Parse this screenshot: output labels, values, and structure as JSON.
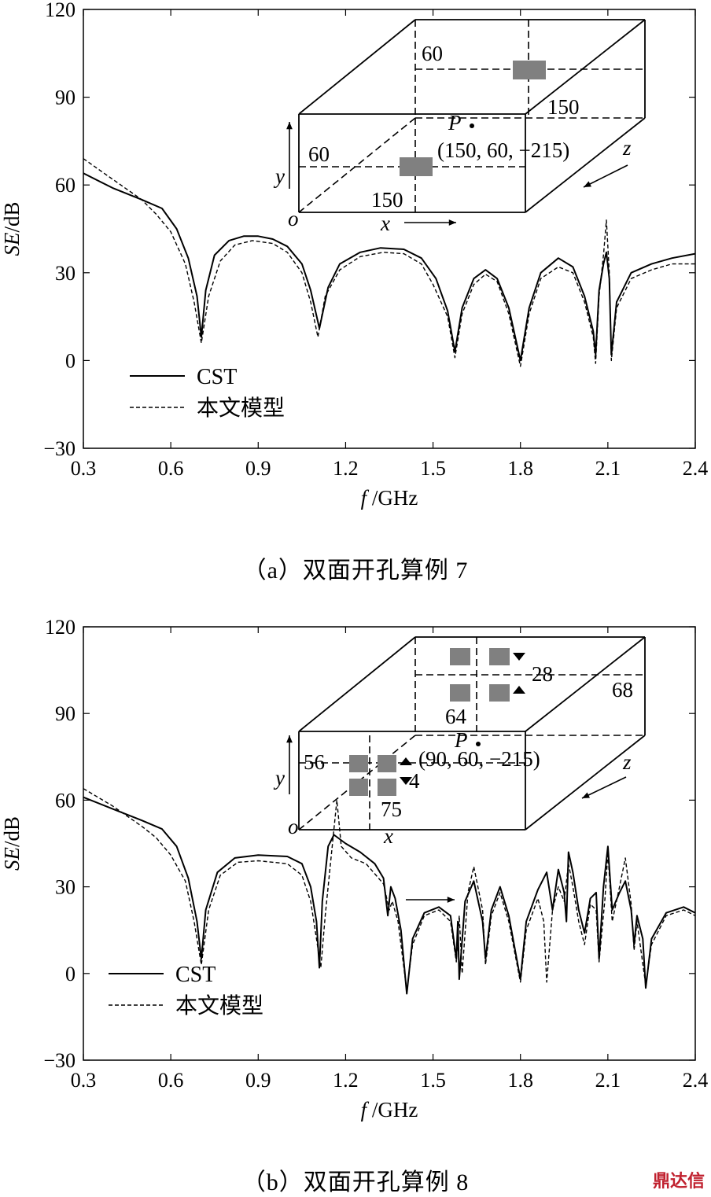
{
  "chart_data": [
    {
      "type": "line",
      "panel_id": "a",
      "caption": "（a）双面开孔算例 7",
      "xlabel": "f/GHz",
      "ylabel": "SE/dB",
      "xlim": [
        0.3,
        2.4
      ],
      "ylim": [
        -30,
        120
      ],
      "xticks": [
        "0.3",
        "0.6",
        "0.9",
        "1.2",
        "1.5",
        "1.8",
        "2.1",
        "2.4"
      ],
      "yticks": [
        "-30",
        "0",
        "30",
        "60",
        "90",
        "120"
      ],
      "legend": [
        "CST",
        "本文模型"
      ],
      "series": [
        {
          "name": "CST",
          "style": "solid",
          "points": [
            [
              0.3,
              64
            ],
            [
              0.4,
              59
            ],
            [
              0.5,
              55
            ],
            [
              0.57,
              52
            ],
            [
              0.62,
              45
            ],
            [
              0.66,
              35
            ],
            [
              0.69,
              22
            ],
            [
              0.705,
              8
            ],
            [
              0.72,
              24
            ],
            [
              0.75,
              36
            ],
            [
              0.8,
              41
            ],
            [
              0.85,
              42.5
            ],
            [
              0.9,
              42.5
            ],
            [
              0.95,
              41.5
            ],
            [
              1.0,
              39
            ],
            [
              1.05,
              33
            ],
            [
              1.08,
              24
            ],
            [
              1.11,
              11
            ],
            [
              1.14,
              25
            ],
            [
              1.18,
              33
            ],
            [
              1.25,
              37
            ],
            [
              1.32,
              38.5
            ],
            [
              1.4,
              38
            ],
            [
              1.46,
              35
            ],
            [
              1.51,
              28
            ],
            [
              1.55,
              17
            ],
            [
              1.575,
              3
            ],
            [
              1.6,
              18
            ],
            [
              1.64,
              28
            ],
            [
              1.68,
              31
            ],
            [
              1.72,
              28
            ],
            [
              1.76,
              18
            ],
            [
              1.8,
              0
            ],
            [
              1.83,
              18
            ],
            [
              1.87,
              30
            ],
            [
              1.93,
              35
            ],
            [
              1.98,
              32
            ],
            [
              2.02,
              22
            ],
            [
              2.05,
              10
            ],
            [
              2.058,
              2
            ],
            [
              2.07,
              24
            ],
            [
              2.085,
              33
            ],
            [
              2.095,
              37
            ],
            [
              2.105,
              28
            ],
            [
              2.112,
              2
            ],
            [
              2.13,
              20
            ],
            [
              2.18,
              30
            ],
            [
              2.25,
              33
            ],
            [
              2.32,
              35
            ],
            [
              2.4,
              36.5
            ]
          ]
        },
        {
          "name": "本文模型",
          "style": "dashed",
          "points": [
            [
              0.3,
              69
            ],
            [
              0.4,
              62
            ],
            [
              0.5,
              55
            ],
            [
              0.55,
              50
            ],
            [
              0.6,
              44
            ],
            [
              0.65,
              33
            ],
            [
              0.68,
              20
            ],
            [
              0.705,
              6
            ],
            [
              0.73,
              22
            ],
            [
              0.77,
              34
            ],
            [
              0.82,
              39.5
            ],
            [
              0.88,
              41
            ],
            [
              0.95,
              40
            ],
            [
              1.0,
              37
            ],
            [
              1.05,
              30
            ],
            [
              1.08,
              20
            ],
            [
              1.105,
              8
            ],
            [
              1.13,
              22
            ],
            [
              1.18,
              31
            ],
            [
              1.25,
              35.5
            ],
            [
              1.33,
              37
            ],
            [
              1.4,
              36.5
            ],
            [
              1.46,
              33
            ],
            [
              1.5,
              26
            ],
            [
              1.55,
              15
            ],
            [
              1.575,
              1
            ],
            [
              1.6,
              16
            ],
            [
              1.64,
              26
            ],
            [
              1.68,
              29.5
            ],
            [
              1.72,
              27
            ],
            [
              1.76,
              16
            ],
            [
              1.8,
              -2
            ],
            [
              1.83,
              16
            ],
            [
              1.87,
              28
            ],
            [
              1.93,
              32
            ],
            [
              1.98,
              30
            ],
            [
              2.02,
              20
            ],
            [
              2.05,
              8
            ],
            [
              2.058,
              -1
            ],
            [
              2.07,
              22
            ],
            [
              2.085,
              36
            ],
            [
              2.095,
              48
            ],
            [
              2.105,
              30
            ],
            [
              2.112,
              0
            ],
            [
              2.13,
              18
            ],
            [
              2.18,
              28
            ],
            [
              2.25,
              31
            ],
            [
              2.32,
              33
            ],
            [
              2.4,
              33
            ]
          ]
        }
      ],
      "inset": {
        "dims": [
          "60",
          "150",
          "60",
          "150"
        ],
        "point_label": "P",
        "point_coord": "(150, 60, −215)",
        "axes": [
          "x",
          "y",
          "z",
          "o"
        ]
      }
    },
    {
      "type": "line",
      "panel_id": "b",
      "caption": "（b）双面开孔算例 8",
      "xlabel": "f/GHz",
      "ylabel": "SE/dB",
      "xlim": [
        0.3,
        2.4
      ],
      "ylim": [
        -30,
        120
      ],
      "xticks": [
        "0.3",
        "0.6",
        "0.9",
        "1.2",
        "1.5",
        "1.8",
        "2.1",
        "2.4"
      ],
      "yticks": [
        "-30",
        "0",
        "30",
        "60",
        "90",
        "120"
      ],
      "legend": [
        "CST",
        "本文模型"
      ],
      "series": [
        {
          "name": "CST",
          "style": "solid",
          "points": [
            [
              0.3,
              61
            ],
            [
              0.4,
              57
            ],
            [
              0.5,
              53
            ],
            [
              0.57,
              50
            ],
            [
              0.62,
              44
            ],
            [
              0.66,
              33
            ],
            [
              0.69,
              18
            ],
            [
              0.705,
              5
            ],
            [
              0.72,
              22
            ],
            [
              0.76,
              35
            ],
            [
              0.82,
              40
            ],
            [
              0.9,
              41
            ],
            [
              1.0,
              40.5
            ],
            [
              1.05,
              38
            ],
            [
              1.08,
              30
            ],
            [
              1.1,
              18
            ],
            [
              1.11,
              2
            ],
            [
              1.12,
              25
            ],
            [
              1.14,
              44
            ],
            [
              1.16,
              48
            ],
            [
              1.2,
              45
            ],
            [
              1.25,
              42
            ],
            [
              1.3,
              38
            ],
            [
              1.33,
              33
            ],
            [
              1.345,
              20
            ],
            [
              1.355,
              30
            ],
            [
              1.37,
              26
            ],
            [
              1.39,
              15
            ],
            [
              1.41,
              -7
            ],
            [
              1.43,
              12
            ],
            [
              1.47,
              21
            ],
            [
              1.52,
              23
            ],
            [
              1.56,
              20
            ],
            [
              1.58,
              5
            ],
            [
              1.585,
              18
            ],
            [
              1.59,
              -2
            ],
            [
              1.61,
              25
            ],
            [
              1.64,
              32
            ],
            [
              1.67,
              18
            ],
            [
              1.68,
              5
            ],
            [
              1.7,
              22
            ],
            [
              1.73,
              30
            ],
            [
              1.76,
              20
            ],
            [
              1.8,
              -2
            ],
            [
              1.82,
              18
            ],
            [
              1.86,
              29
            ],
            [
              1.89,
              35
            ],
            [
              1.91,
              22
            ],
            [
              1.93,
              36
            ],
            [
              1.95,
              28
            ],
            [
              1.958,
              18
            ],
            [
              1.965,
              42
            ],
            [
              1.98,
              35
            ],
            [
              2.0,
              22
            ],
            [
              2.02,
              14
            ],
            [
              2.04,
              26
            ],
            [
              2.06,
              28
            ],
            [
              2.07,
              5
            ],
            [
              2.085,
              30
            ],
            [
              2.1,
              44
            ],
            [
              2.115,
              22
            ],
            [
              2.14,
              28
            ],
            [
              2.16,
              32
            ],
            [
              2.18,
              22
            ],
            [
              2.19,
              10
            ],
            [
              2.2,
              20
            ],
            [
              2.22,
              12
            ],
            [
              2.23,
              -5
            ],
            [
              2.25,
              12
            ],
            [
              2.3,
              21
            ],
            [
              2.36,
              23
            ],
            [
              2.4,
              21
            ]
          ]
        },
        {
          "name": "本文模型",
          "style": "dashed",
          "points": [
            [
              0.3,
              64
            ],
            [
              0.4,
              58
            ],
            [
              0.5,
              51
            ],
            [
              0.55,
              47
            ],
            [
              0.6,
              41
            ],
            [
              0.65,
              32
            ],
            [
              0.68,
              18
            ],
            [
              0.705,
              3
            ],
            [
              0.73,
              22
            ],
            [
              0.77,
              34
            ],
            [
              0.83,
              38.5
            ],
            [
              0.9,
              39
            ],
            [
              1.0,
              38
            ],
            [
              1.05,
              34
            ],
            [
              1.08,
              25
            ],
            [
              1.1,
              12
            ],
            [
              1.115,
              2
            ],
            [
              1.13,
              20
            ],
            [
              1.15,
              40
            ],
            [
              1.17,
              60
            ],
            [
              1.185,
              44
            ],
            [
              1.22,
              40
            ],
            [
              1.27,
              38
            ],
            [
              1.33,
              31
            ],
            [
              1.35,
              22
            ],
            [
              1.36,
              25
            ],
            [
              1.38,
              18
            ],
            [
              1.41,
              -6
            ],
            [
              1.43,
              10
            ],
            [
              1.47,
              20
            ],
            [
              1.52,
              22
            ],
            [
              1.56,
              18
            ],
            [
              1.58,
              4
            ],
            [
              1.59,
              20
            ],
            [
              1.6,
              0
            ],
            [
              1.62,
              28
            ],
            [
              1.64,
              37
            ],
            [
              1.67,
              22
            ],
            [
              1.68,
              3
            ],
            [
              1.7,
              20
            ],
            [
              1.73,
              28
            ],
            [
              1.76,
              18
            ],
            [
              1.8,
              -3
            ],
            [
              1.82,
              15
            ],
            [
              1.86,
              26
            ],
            [
              1.88,
              18
            ],
            [
              1.89,
              -3
            ],
            [
              1.91,
              22
            ],
            [
              1.93,
              30
            ],
            [
              1.95,
              25
            ],
            [
              1.965,
              38
            ],
            [
              1.98,
              30
            ],
            [
              2.0,
              18
            ],
            [
              2.02,
              10
            ],
            [
              2.04,
              24
            ],
            [
              2.06,
              22
            ],
            [
              2.07,
              4
            ],
            [
              2.09,
              26
            ],
            [
              2.1,
              42
            ],
            [
              2.115,
              18
            ],
            [
              2.14,
              30
            ],
            [
              2.16,
              40
            ],
            [
              2.18,
              24
            ],
            [
              2.19,
              8
            ],
            [
              2.2,
              18
            ],
            [
              2.23,
              -4
            ],
            [
              2.25,
              10
            ],
            [
              2.3,
              20
            ],
            [
              2.36,
              22
            ],
            [
              2.4,
              20
            ]
          ]
        }
      ],
      "inset": {
        "dims": [
          "56",
          "4",
          "75",
          "28",
          "68",
          "64"
        ],
        "point_label": "P",
        "point_coord": "(90, 60, −215)",
        "axes": [
          "x",
          "y",
          "z",
          "o"
        ]
      }
    }
  ],
  "watermark": "鼎达信"
}
